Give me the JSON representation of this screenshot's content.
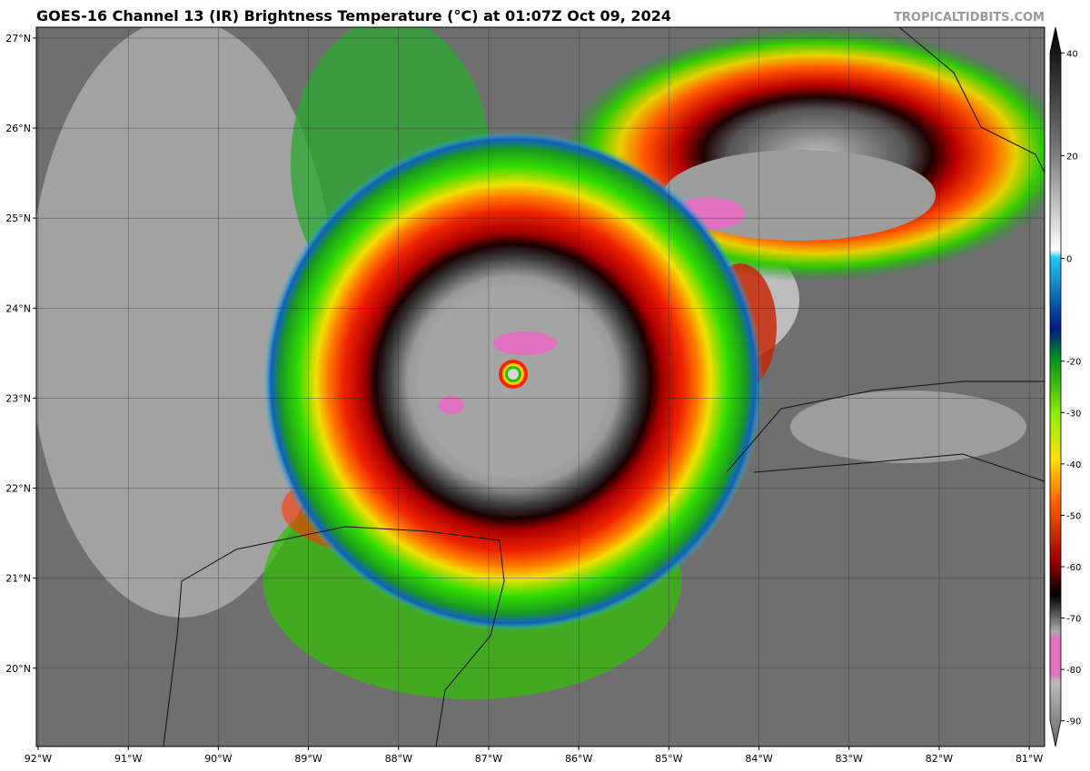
{
  "title": "GOES-16 Channel 13 (IR) Brightness Temperature (°C) at 01:07Z Oct 09, 2024",
  "credit": "TROPICALTIDBITS.COM",
  "map": {
    "xlim": [
      -92.02,
      -80.83
    ],
    "ylim": [
      19.13,
      27.12
    ],
    "xticks": [
      {
        "value": -92,
        "label": "92°W"
      },
      {
        "value": -91,
        "label": "91°W"
      },
      {
        "value": -90,
        "label": "90°W"
      },
      {
        "value": -89,
        "label": "89°W"
      },
      {
        "value": -88,
        "label": "88°W"
      },
      {
        "value": -87,
        "label": "87°W"
      },
      {
        "value": -86,
        "label": "86°W"
      },
      {
        "value": -85,
        "label": "85°W"
      },
      {
        "value": -84,
        "label": "84°W"
      },
      {
        "value": -83,
        "label": "83°W"
      },
      {
        "value": -82,
        "label": "82°W"
      },
      {
        "value": -81,
        "label": "81°W"
      }
    ],
    "yticks": [
      {
        "value": 27,
        "label": "27°N"
      },
      {
        "value": 26,
        "label": "26°N"
      },
      {
        "value": 25,
        "label": "25°N"
      },
      {
        "value": 24,
        "label": "24°N"
      },
      {
        "value": 23,
        "label": "23°N"
      },
      {
        "value": 22,
        "label": "22°N"
      },
      {
        "value": 21,
        "label": "21°N"
      },
      {
        "value": 20,
        "label": "20°N"
      }
    ]
  },
  "colorbar": {
    "lim": [
      -95,
      45
    ],
    "ticks": [
      40,
      20,
      0,
      -20,
      -30,
      -40,
      -50,
      -60,
      -70,
      -80,
      -90
    ]
  }
}
